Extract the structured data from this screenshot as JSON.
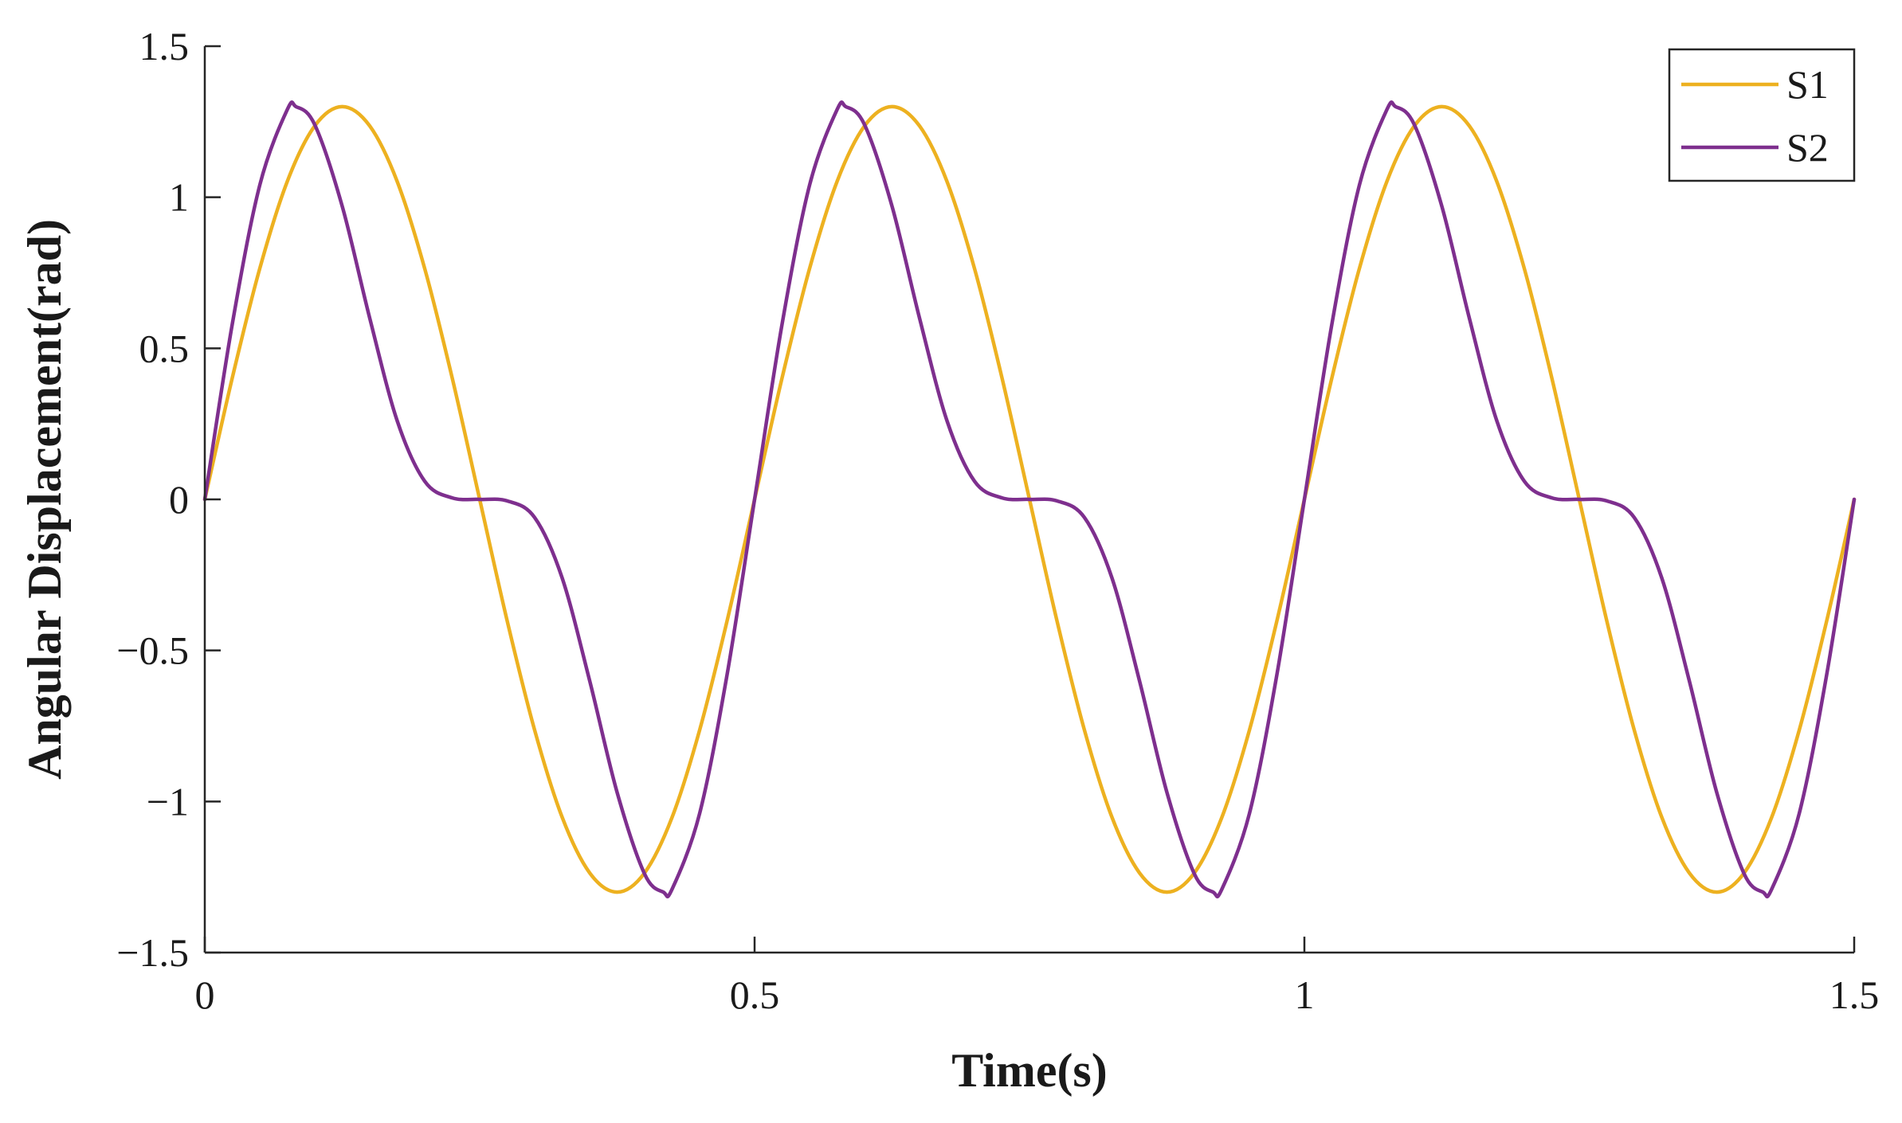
{
  "chart_data": {
    "type": "line",
    "xlabel": "Time(s)",
    "ylabel": "Angular Displacement(rad)",
    "xlim": [
      0,
      1.5
    ],
    "ylim": [
      -1.5,
      1.5
    ],
    "xticks": [
      0,
      0.5,
      1,
      1.5
    ],
    "xtick_labels": [
      "0",
      "0.5",
      "1",
      "1.5"
    ],
    "yticks": [
      1.5,
      1,
      0.5,
      0,
      -0.5,
      -1,
      -1.5
    ],
    "ytick_labels": [
      "1.5",
      "1",
      "0.5",
      "0",
      "−0.5",
      "−1",
      "−1.5"
    ],
    "grid": false,
    "legend_position": "top-right",
    "series": [
      {
        "name": "S1",
        "color": "#EDB120",
        "x": [
          0.0,
          0.025,
          0.05,
          0.075,
          0.1,
          0.125,
          0.15,
          0.175,
          0.2,
          0.225,
          0.25,
          0.275,
          0.3,
          0.325,
          0.35,
          0.375,
          0.4,
          0.425,
          0.45,
          0.475,
          0.5,
          0.525,
          0.55,
          0.575,
          0.6,
          0.625,
          0.65,
          0.675,
          0.7,
          0.725,
          0.75,
          0.775,
          0.8,
          0.825,
          0.85,
          0.875,
          0.9,
          0.925,
          0.95,
          0.975,
          1.0,
          1.025,
          1.05,
          1.075,
          1.1,
          1.125,
          1.15,
          1.175,
          1.2,
          1.225,
          1.25,
          1.275,
          1.3,
          1.325,
          1.35,
          1.375,
          1.4,
          1.425,
          1.45,
          1.475,
          1.5
        ],
        "y": [
          0.0,
          0.402,
          0.764,
          1.052,
          1.236,
          1.3,
          1.236,
          1.052,
          0.764,
          0.402,
          0.0,
          -0.402,
          -0.764,
          -1.052,
          -1.236,
          -1.3,
          -1.236,
          -1.052,
          -0.764,
          -0.402,
          0.0,
          0.402,
          0.764,
          1.052,
          1.236,
          1.3,
          1.236,
          1.052,
          0.764,
          0.402,
          0.0,
          -0.402,
          -0.764,
          -1.052,
          -1.236,
          -1.3,
          -1.236,
          -1.052,
          -0.764,
          -0.402,
          0.0,
          0.402,
          0.764,
          1.052,
          1.236,
          1.3,
          1.236,
          1.052,
          0.764,
          0.402,
          0.0,
          -0.402,
          -0.764,
          -1.052,
          -1.236,
          -1.3,
          -1.236,
          -1.052,
          -0.764,
          -0.402,
          0.0
        ]
      },
      {
        "name": "S2",
        "color": "#7E2F8E",
        "x": [
          0.0,
          0.025,
          0.05,
          0.075,
          0.083,
          0.1,
          0.125,
          0.15,
          0.175,
          0.2,
          0.225,
          0.25,
          0.275,
          0.3,
          0.325,
          0.35,
          0.375,
          0.4,
          0.417,
          0.425,
          0.45,
          0.475,
          0.5,
          0.525,
          0.55,
          0.575,
          0.583,
          0.6,
          0.625,
          0.65,
          0.675,
          0.7,
          0.725,
          0.75,
          0.775,
          0.8,
          0.825,
          0.85,
          0.875,
          0.9,
          0.917,
          0.925,
          0.95,
          0.975,
          1.0,
          1.025,
          1.05,
          1.075,
          1.083,
          1.1,
          1.125,
          1.15,
          1.175,
          1.2,
          1.225,
          1.25,
          1.275,
          1.3,
          1.325,
          1.35,
          1.375,
          1.4,
          1.417,
          1.425,
          1.45,
          1.475,
          1.5
        ],
        "y": [
          0.0,
          0.58,
          1.04,
          1.29,
          1.3,
          1.24,
          0.97,
          0.6,
          0.26,
          0.06,
          0.005,
          0.0,
          -0.005,
          -0.06,
          -0.26,
          -0.6,
          -0.97,
          -1.24,
          -1.3,
          -1.29,
          -1.04,
          -0.58,
          0.0,
          0.58,
          1.04,
          1.29,
          1.3,
          1.24,
          0.97,
          0.6,
          0.26,
          0.06,
          0.005,
          0.0,
          -0.005,
          -0.06,
          -0.26,
          -0.6,
          -0.97,
          -1.24,
          -1.3,
          -1.29,
          -1.04,
          -0.58,
          0.0,
          0.58,
          1.04,
          1.29,
          1.3,
          1.24,
          0.97,
          0.6,
          0.26,
          0.06,
          0.005,
          0.0,
          -0.005,
          -0.06,
          -0.26,
          -0.6,
          -0.97,
          -1.24,
          -1.3,
          -1.29,
          -1.04,
          -0.58,
          0.0
        ]
      }
    ]
  }
}
